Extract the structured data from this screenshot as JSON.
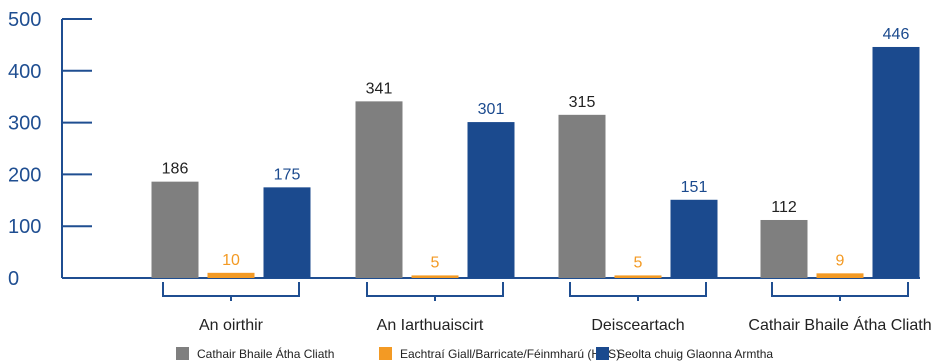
{
  "chart_data": {
    "type": "bar",
    "categories": [
      "An oirthir",
      "An Iarthuaiscirt",
      "Deisceartach",
      "Cathair Bhaile Átha Cliath"
    ],
    "series": [
      {
        "name": "Cathair Bhaile Átha Cliath",
        "values": [
          186,
          341,
          315,
          112
        ],
        "color": "#7f7f7f",
        "label_color": "#222222"
      },
      {
        "name": "Eachtraí Giall/Barricate/Féinmharú (HBS)",
        "values": [
          10,
          5,
          5,
          9
        ],
        "color": "#f39a24",
        "label_color": "#f39a24"
      },
      {
        "name": "Seolta chuig Glaonna Armtha",
        "values": [
          175,
          301,
          151,
          446
        ],
        "color": "#1b4a8e",
        "label_color": "#1b4a8e"
      }
    ],
    "y_ticks": [
      "0",
      "100",
      "200",
      "300",
      "400",
      "500"
    ],
    "ylim": [
      0,
      500
    ],
    "xlabel": "",
    "ylabel": "",
    "title": "",
    "grid": false,
    "legend_position": "bottom",
    "axis_color": "#1f4e91"
  }
}
